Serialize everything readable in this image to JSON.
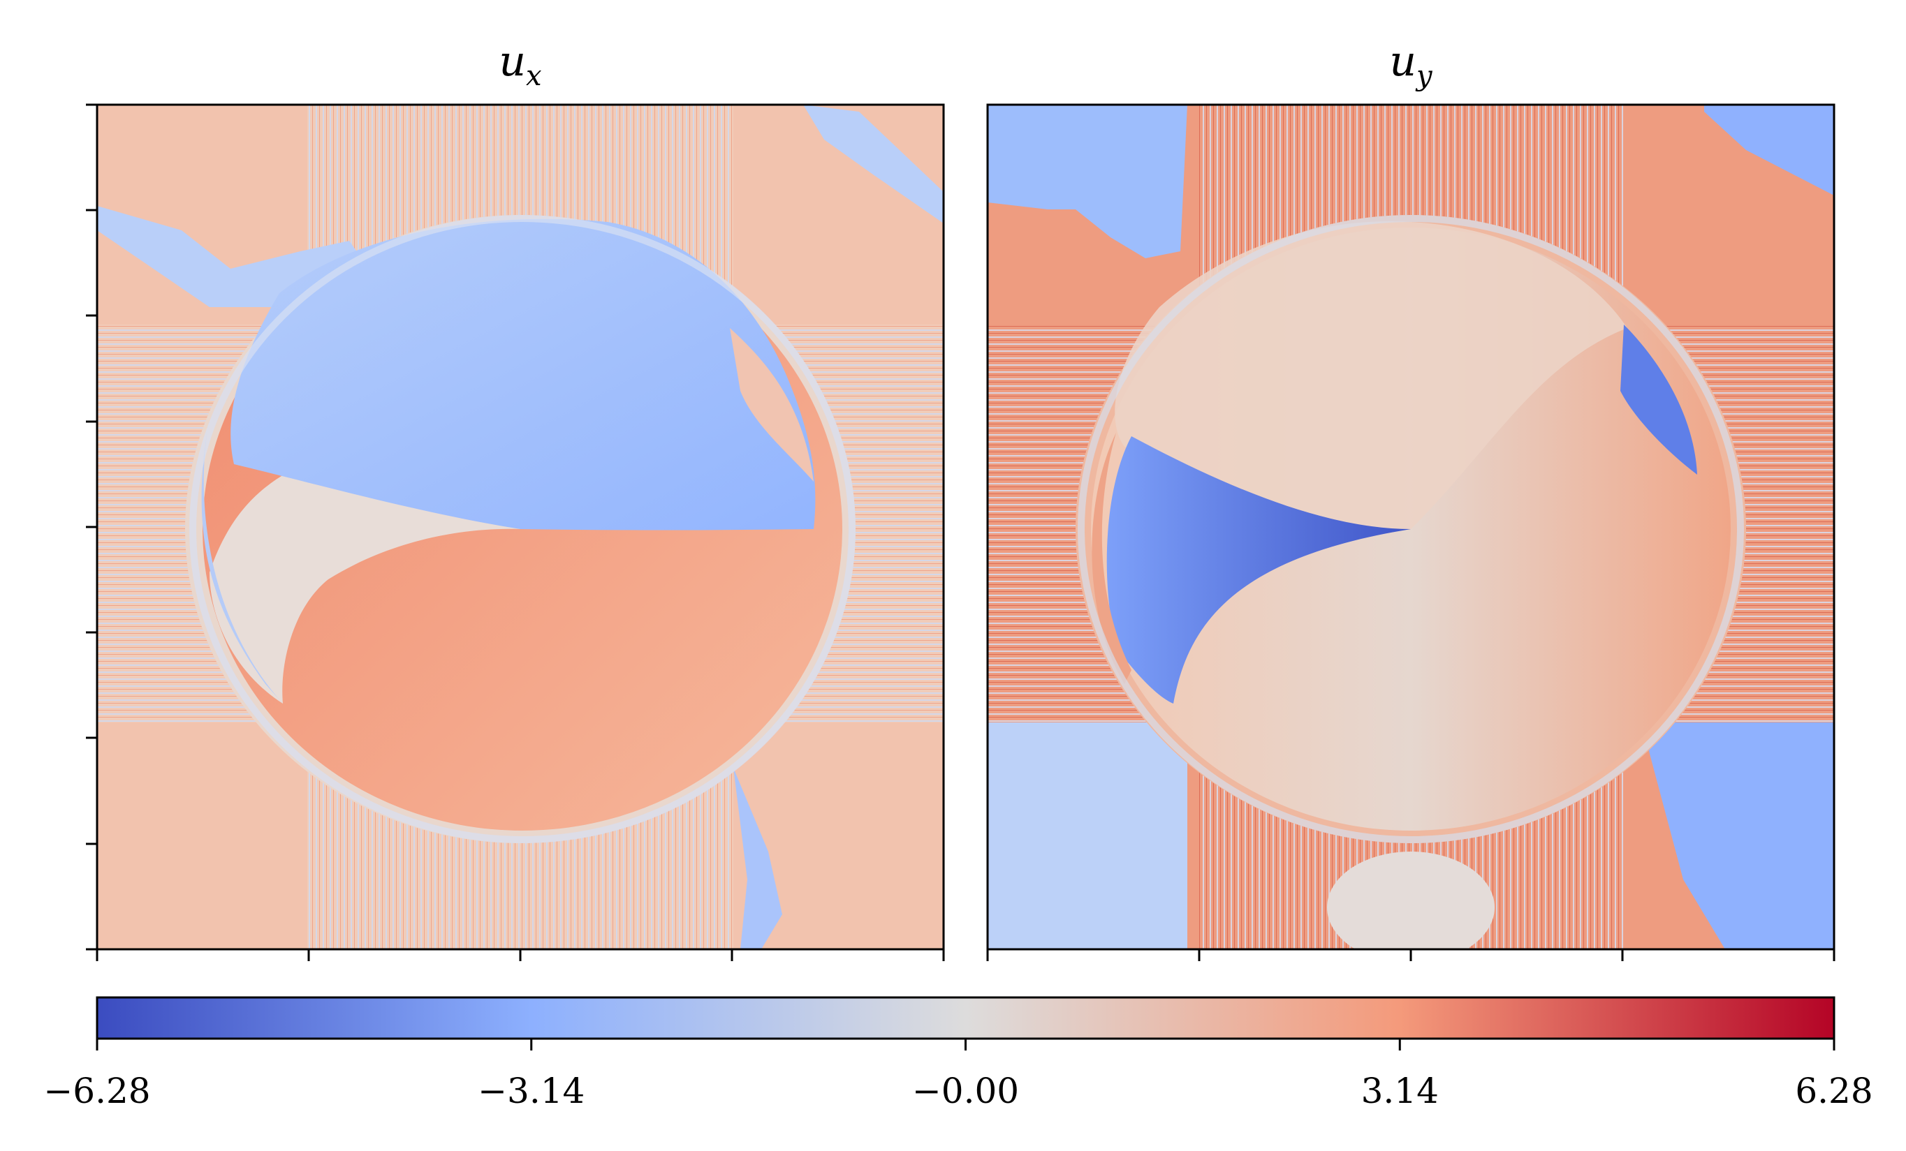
{
  "chart_data": [
    {
      "type": "heatmap",
      "title": "u",
      "title_sub": "x",
      "colormap": "coolwarm",
      "clim": [
        -6.28,
        6.28
      ],
      "x_ticks": 5,
      "y_ticks": 9,
      "tick_labels_shown": false
    },
    {
      "type": "heatmap",
      "title": "u",
      "title_sub": "y",
      "colormap": "coolwarm",
      "clim": [
        -6.28,
        6.28
      ],
      "x_ticks": 5,
      "tick_labels_shown": false
    }
  ],
  "colorbar": {
    "orientation": "horizontal",
    "ticks": [
      -6.28,
      -3.14,
      0.0,
      3.14,
      6.28
    ],
    "tick_labels": [
      "−6.28",
      "−3.14",
      "−0.00",
      "3.14",
      "6.28"
    ]
  },
  "colors": {
    "cmap_min": "#3b4cc0",
    "cmap_low": "#8db0fe",
    "cmap_mid": "#dddcdc",
    "cmap_high": "#f49a7b",
    "cmap_max": "#b40426",
    "field_pink": "#f2c3ae",
    "field_blue": "#a9c4fc",
    "field_orange": "#f3a585"
  }
}
